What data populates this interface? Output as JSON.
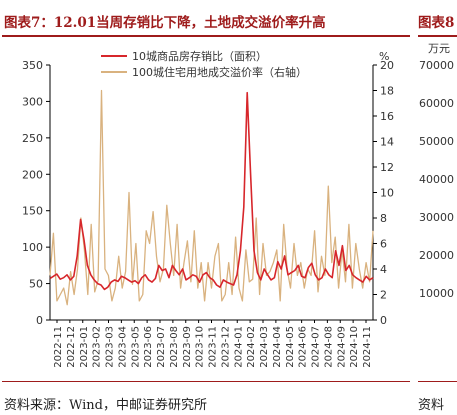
{
  "title_left": "图表7：12.01当周存销比下降，土地成交溢价率升高",
  "title_right": "图表8",
  "source_left": "资料来源：Wind，中邮证券研究所",
  "source_right": "资料",
  "colors": {
    "series1": "#d7262b",
    "series2": "#d9b27f",
    "title": "#9e1b1b"
  },
  "chart_data": {
    "type": "line",
    "x_ticks": [
      "2022-11",
      "2022-12",
      "2023-01",
      "2023-02",
      "2023-03",
      "2023-04",
      "2023-05",
      "2023-06",
      "2023-07",
      "2023-08",
      "2023-09",
      "2023-10",
      "2023-11",
      "2023-12",
      "2024-01",
      "2024-02",
      "2024-03",
      "2024-04",
      "2024-05",
      "2024-06",
      "2024-07",
      "2024-08",
      "2024-09",
      "2024-10",
      "2024-11"
    ],
    "ylim_left": [
      0,
      350
    ],
    "yticks_left": [
      0,
      50,
      100,
      150,
      200,
      250,
      300,
      350
    ],
    "ylim_right": [
      0,
      20
    ],
    "yticks_right": [
      0,
      2,
      4,
      6,
      8,
      10,
      12,
      14,
      16,
      18,
      20
    ],
    "right_unit": "%",
    "series": [
      {
        "name": "10城商品房存销比（面积）",
        "axis": "left",
        "values": [
          57,
          60,
          63,
          56,
          58,
          62,
          55,
          60,
          88,
          138,
          110,
          75,
          62,
          55,
          50,
          48,
          42,
          45,
          52,
          55,
          53,
          60,
          58,
          55,
          52,
          54,
          50,
          58,
          62,
          55,
          52,
          57,
          75,
          68,
          70,
          58,
          75,
          68,
          62,
          70,
          55,
          58,
          62,
          60,
          52,
          62,
          65,
          58,
          55,
          48,
          45,
          55,
          52,
          50,
          48,
          62,
          95,
          155,
          312,
          200,
          95,
          65,
          55,
          70,
          62,
          55,
          58,
          80,
          70,
          88,
          62,
          65,
          68,
          75,
          60,
          58,
          72,
          78,
          62,
          55,
          58,
          70,
          62,
          58,
          95,
          75,
          102,
          68,
          75,
          62,
          58,
          55,
          52,
          60,
          55,
          58
        ]
      },
      {
        "name": "100城住宅用地成交溢价率（右轴）",
        "axis": "right",
        "values": [
          3.5,
          6.8,
          1.5,
          2,
          2.5,
          1.2,
          3.8,
          2,
          4,
          8,
          5.5,
          2,
          7.5,
          2.2,
          3.1,
          18,
          4,
          3.5,
          1.5,
          2.5,
          5,
          2.5,
          3.8,
          10,
          2.8,
          6,
          1.5,
          2,
          7,
          6,
          8.5,
          5,
          3,
          4,
          9,
          6,
          3.5,
          7.5,
          2.5,
          4.5,
          6.2,
          3,
          7,
          2.5,
          4.5,
          1.5,
          4.5,
          2.5,
          5,
          6,
          1.5,
          2,
          4.5,
          2,
          6.5,
          2.5,
          1.5,
          5.5,
          3,
          3.2,
          8,
          2,
          6,
          3.5,
          3.8,
          4.5,
          5.5,
          1.5,
          7.5,
          4,
          2.5,
          6,
          3.5,
          4.5,
          2.5,
          4,
          3.5,
          7,
          2.2,
          5,
          3.5,
          10.5,
          4.5,
          6.5,
          2.5,
          5.5,
          3,
          7.5,
          2.5,
          6,
          4,
          2.5,
          4.5,
          3,
          7
        ]
      }
    ]
  },
  "right_chart": {
    "unit": "万元",
    "yticks": [
      "70000",
      "60000",
      "50000",
      "40000",
      "30000",
      "20000",
      "10000"
    ]
  }
}
